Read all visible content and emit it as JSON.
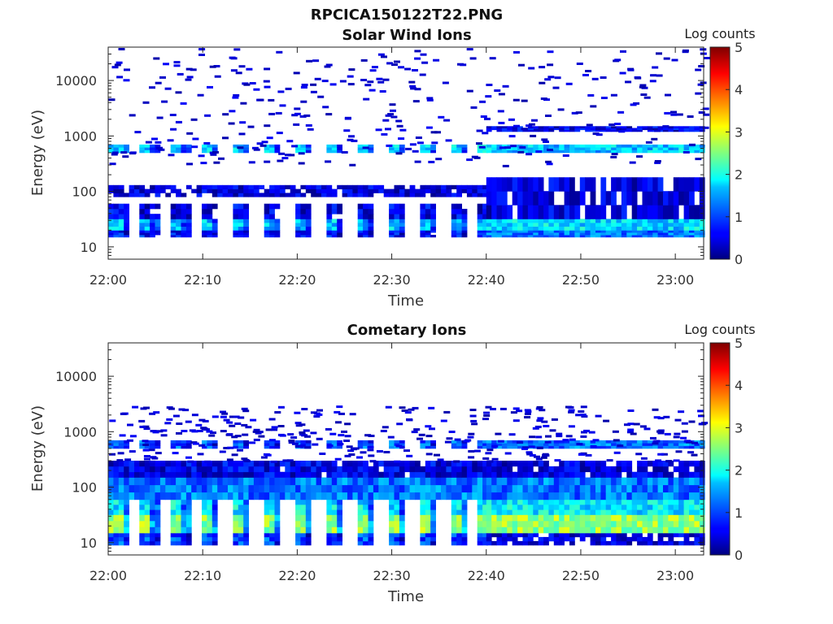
{
  "figure": {
    "title": "RPCICA150122T22.PNG"
  },
  "colorscale": {
    "label": "Log counts",
    "min": 0,
    "max": 5,
    "ticks": [
      "0",
      "1",
      "2",
      "3",
      "4",
      "5"
    ],
    "colormap": "jet"
  },
  "chart_data": [
    {
      "type": "heatmap",
      "title": "Solar Wind Ions",
      "xlabel": "Time",
      "ylabel": "Energy (eV)",
      "yscale": "log",
      "xlim": [
        "22:00",
        "23:03"
      ],
      "ylim": [
        6,
        40000
      ],
      "x_ticks": [
        "22:00",
        "22:10",
        "22:20",
        "22:30",
        "22:40",
        "22:50",
        "23:00"
      ],
      "y_ticks": [
        "10",
        "100",
        "1000",
        "10000"
      ],
      "colorbar_label": "Log counts",
      "bands": [
        {
          "e_lo": 15,
          "e_hi": 20,
          "t_from": "22:00",
          "t_to": "22:40",
          "level": 0.7,
          "pulsed": true
        },
        {
          "e_lo": 20,
          "e_hi": 32,
          "t_from": "22:00",
          "t_to": "22:40",
          "level": 1.6,
          "pulsed": true
        },
        {
          "e_lo": 32,
          "e_hi": 60,
          "t_from": "22:00",
          "t_to": "22:40",
          "level": 0.5,
          "pulsed": true
        },
        {
          "e_lo": 80,
          "e_hi": 130,
          "t_from": "22:00",
          "t_to": "22:40",
          "level": 0.4,
          "pulsed": false
        },
        {
          "e_lo": 500,
          "e_hi": 700,
          "t_from": "22:00",
          "t_to": "22:40",
          "level": 1.7,
          "pulsed": true
        },
        {
          "e_lo": 15,
          "e_hi": 20,
          "t_from": "22:40",
          "t_to": "23:03",
          "level": 1.2,
          "pulsed": false
        },
        {
          "e_lo": 20,
          "e_hi": 32,
          "t_from": "22:40",
          "t_to": "23:03",
          "level": 1.7,
          "pulsed": false
        },
        {
          "e_lo": 32,
          "e_hi": 180,
          "t_from": "22:40",
          "t_to": "23:03",
          "level": 0.4,
          "pulsed": false
        },
        {
          "e_lo": 500,
          "e_hi": 700,
          "t_from": "22:40",
          "t_to": "23:03",
          "level": 1.6,
          "pulsed": false
        },
        {
          "e_lo": 1200,
          "e_hi": 1500,
          "t_from": "22:40",
          "t_to": "23:03",
          "level": 0.5,
          "pulsed": false
        }
      ]
    },
    {
      "type": "heatmap",
      "title": "Cometary Ions",
      "xlabel": "Time",
      "ylabel": "Energy (eV)",
      "yscale": "log",
      "xlim": [
        "22:00",
        "23:03"
      ],
      "ylim": [
        6,
        40000
      ],
      "x_ticks": [
        "22:00",
        "22:10",
        "22:20",
        "22:30",
        "22:40",
        "22:50",
        "23:00"
      ],
      "y_ticks": [
        "10",
        "100",
        "1000",
        "10000"
      ],
      "colorbar_label": "Log counts",
      "bands": [
        {
          "e_lo": 9,
          "e_hi": 15,
          "t_from": "22:00",
          "t_to": "22:40",
          "level": 1.0,
          "pulsed": true
        },
        {
          "e_lo": 15,
          "e_hi": 32,
          "t_from": "22:00",
          "t_to": "22:40",
          "level": 2.6,
          "pulsed": true
        },
        {
          "e_lo": 32,
          "e_hi": 60,
          "t_from": "22:00",
          "t_to": "22:40",
          "level": 1.8,
          "pulsed": true
        },
        {
          "e_lo": 60,
          "e_hi": 150,
          "t_from": "22:00",
          "t_to": "22:40",
          "level": 1.2,
          "pulsed": false
        },
        {
          "e_lo": 150,
          "e_hi": 300,
          "t_from": "22:00",
          "t_to": "22:40",
          "level": 0.5,
          "pulsed": false
        },
        {
          "e_lo": 500,
          "e_hi": 700,
          "t_from": "22:00",
          "t_to": "22:40",
          "level": 1.1,
          "pulsed": true
        },
        {
          "e_lo": 9,
          "e_hi": 15,
          "t_from": "22:40",
          "t_to": "23:03",
          "level": 0.4,
          "pulsed": false
        },
        {
          "e_lo": 15,
          "e_hi": 32,
          "t_from": "22:40",
          "t_to": "23:03",
          "level": 2.6,
          "pulsed": false
        },
        {
          "e_lo": 32,
          "e_hi": 60,
          "t_from": "22:40",
          "t_to": "23:03",
          "level": 1.8,
          "pulsed": false
        },
        {
          "e_lo": 60,
          "e_hi": 150,
          "t_from": "22:40",
          "t_to": "23:03",
          "level": 1.2,
          "pulsed": false
        },
        {
          "e_lo": 150,
          "e_hi": 300,
          "t_from": "22:40",
          "t_to": "23:03",
          "level": 0.4,
          "pulsed": false
        },
        {
          "e_lo": 500,
          "e_hi": 700,
          "t_from": "22:40",
          "t_to": "23:03",
          "level": 1.2,
          "pulsed": false
        }
      ]
    }
  ]
}
